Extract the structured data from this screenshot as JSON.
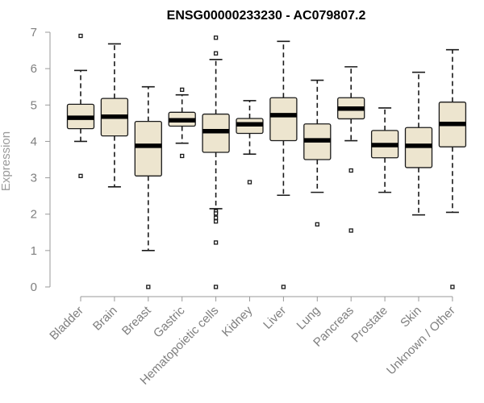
{
  "chart_data": {
    "type": "boxplot",
    "title": "ENSG00000233230 - AC079807.2",
    "xlabel": "",
    "ylabel": "Expression",
    "ylim": [
      0,
      7
    ],
    "yticks": [
      0,
      1,
      2,
      3,
      4,
      5,
      6,
      7
    ],
    "grid": false,
    "legend": "none",
    "colors": {
      "box_fill": "#ede5cf",
      "box_stroke": "#1a1a1a",
      "median": "#000000",
      "axis": "#9a9a9a",
      "tick_label": "#7f7f7f",
      "ylabel": "#9a9a9a",
      "title": "#000000"
    },
    "categories": [
      "Bladder",
      "Brain",
      "Breast",
      "Gastric",
      "Hematopoietic cells",
      "Kidney",
      "Liver",
      "Lung",
      "Pancreas",
      "Prostate",
      "Skin",
      "Unknown / Other"
    ],
    "boxes": [
      {
        "category": "Bladder",
        "whisker_low": 4.0,
        "q1": 4.35,
        "median": 4.65,
        "q3": 5.02,
        "whisker_high": 5.95,
        "outliers": [
          6.9,
          3.05
        ]
      },
      {
        "category": "Brain",
        "whisker_low": 2.75,
        "q1": 4.15,
        "median": 4.68,
        "q3": 5.18,
        "whisker_high": 6.68,
        "outliers": []
      },
      {
        "category": "Breast",
        "whisker_low": 1.0,
        "q1": 3.05,
        "median": 3.88,
        "q3": 4.55,
        "whisker_high": 5.5,
        "outliers": [
          0.0
        ]
      },
      {
        "category": "Gastric",
        "whisker_low": 3.95,
        "q1": 4.42,
        "median": 4.58,
        "q3": 4.8,
        "whisker_high": 5.28,
        "outliers": [
          5.42,
          3.6
        ]
      },
      {
        "category": "Hematopoietic cells",
        "whisker_low": 2.15,
        "q1": 3.7,
        "median": 4.28,
        "q3": 4.75,
        "whisker_high": 6.25,
        "outliers": [
          6.85,
          6.42,
          2.08,
          2.02,
          1.9,
          1.8,
          1.22,
          0.0
        ]
      },
      {
        "category": "Kidney",
        "whisker_low": 3.65,
        "q1": 4.22,
        "median": 4.47,
        "q3": 4.63,
        "whisker_high": 5.12,
        "outliers": [
          2.88
        ]
      },
      {
        "category": "Liver",
        "whisker_low": 2.52,
        "q1": 4.02,
        "median": 4.72,
        "q3": 5.2,
        "whisker_high": 6.75,
        "outliers": [
          0.0
        ]
      },
      {
        "category": "Lung",
        "whisker_low": 2.6,
        "q1": 3.5,
        "median": 4.03,
        "q3": 4.48,
        "whisker_high": 5.68,
        "outliers": [
          1.72
        ]
      },
      {
        "category": "Pancreas",
        "whisker_low": 4.02,
        "q1": 4.62,
        "median": 4.9,
        "q3": 5.2,
        "whisker_high": 6.05,
        "outliers": [
          3.2,
          1.55
        ]
      },
      {
        "category": "Prostate",
        "whisker_low": 2.6,
        "q1": 3.55,
        "median": 3.9,
        "q3": 4.3,
        "whisker_high": 4.92,
        "outliers": []
      },
      {
        "category": "Skin",
        "whisker_low": 1.98,
        "q1": 3.28,
        "median": 3.88,
        "q3": 4.38,
        "whisker_high": 5.9,
        "outliers": []
      },
      {
        "category": "Unknown / Other",
        "whisker_low": 2.05,
        "q1": 3.85,
        "median": 4.48,
        "q3": 5.08,
        "whisker_high": 6.52,
        "outliers": [
          0.0
        ]
      }
    ]
  }
}
